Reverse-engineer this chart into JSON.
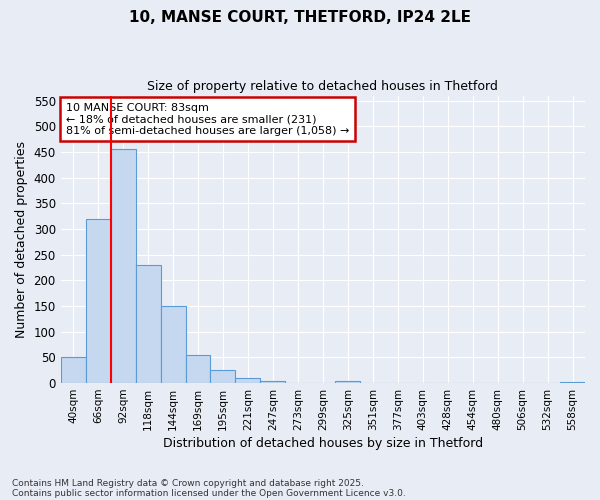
{
  "title1": "10, MANSE COURT, THETFORD, IP24 2LE",
  "title2": "Size of property relative to detached houses in Thetford",
  "xlabel": "Distribution of detached houses by size in Thetford",
  "ylabel": "Number of detached properties",
  "categories": [
    "40sqm",
    "66sqm",
    "92sqm",
    "118sqm",
    "144sqm",
    "169sqm",
    "195sqm",
    "221sqm",
    "247sqm",
    "273sqm",
    "299sqm",
    "325sqm",
    "351sqm",
    "377sqm",
    "403sqm",
    "428sqm",
    "454sqm",
    "480sqm",
    "506sqm",
    "532sqm",
    "558sqm"
  ],
  "values": [
    50,
    320,
    455,
    230,
    150,
    55,
    25,
    10,
    5,
    0,
    0,
    5,
    0,
    0,
    0,
    0,
    0,
    0,
    0,
    0,
    2
  ],
  "bar_color": "#c5d8f0",
  "bar_edge_color": "#5b9bd5",
  "background_color": "#e8edf5",
  "grid_color": "#ffffff",
  "vline_x": 1.5,
  "vline_color": "#ff0000",
  "annotation_text": "10 MANSE COURT: 83sqm\n← 18% of detached houses are smaller (231)\n81% of semi-detached houses are larger (1,058) →",
  "annotation_box_color": "#ffffff",
  "annotation_box_edge": "#cc0000",
  "ylim": [
    0,
    560
  ],
  "yticks": [
    0,
    50,
    100,
    150,
    200,
    250,
    300,
    350,
    400,
    450,
    500,
    550
  ],
  "footer1": "Contains HM Land Registry data © Crown copyright and database right 2025.",
  "footer2": "Contains public sector information licensed under the Open Government Licence v3.0."
}
